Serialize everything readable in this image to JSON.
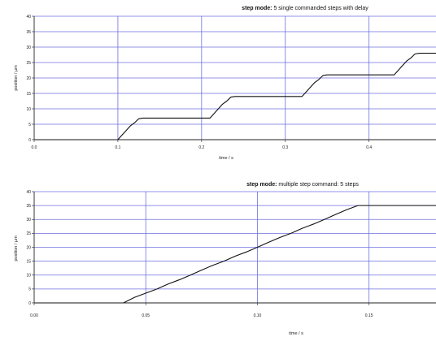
{
  "chart_data": [
    {
      "type": "line",
      "title_bold": "step mode:",
      "title_rest": " 5 single commanded steps with delay",
      "xlabel": "time / s",
      "ylabel": "position / µm",
      "xlim": [
        0.0,
        0.48
      ],
      "ylim": [
        0,
        40
      ],
      "xticks": [
        0.0,
        0.1,
        0.2,
        0.3,
        0.4
      ],
      "xtick_labels": [
        "0.0",
        "0.1",
        "0.2",
        "0.3",
        "0.4"
      ],
      "yticks": [
        0,
        5,
        10,
        15,
        20,
        25,
        30,
        35,
        40
      ],
      "ytick_labels": [
        "0",
        "5",
        "10",
        "15",
        "20",
        "25",
        "30",
        "35",
        "40"
      ],
      "grid": true,
      "x": [
        0.0,
        0.1,
        0.105,
        0.11,
        0.115,
        0.12,
        0.125,
        0.13,
        0.21,
        0.215,
        0.22,
        0.225,
        0.23,
        0.235,
        0.24,
        0.32,
        0.325,
        0.33,
        0.335,
        0.34,
        0.345,
        0.35,
        0.43,
        0.435,
        0.44,
        0.445,
        0.45,
        0.455,
        0.46,
        0.48
      ],
      "y": [
        0,
        0,
        1.5,
        3,
        4.5,
        5.5,
        6.8,
        7,
        7,
        8.5,
        10,
        11.5,
        12.5,
        13.8,
        14,
        14,
        15.5,
        17,
        18.5,
        19.5,
        20.8,
        21,
        21,
        22.5,
        24,
        25.5,
        26.5,
        27.8,
        28,
        28
      ]
    },
    {
      "type": "line",
      "title_bold": "step mode:",
      "title_rest": " multiple step command: 5 steps",
      "xlabel": "time / s",
      "ylabel": "position / µm",
      "xlim": [
        0.0,
        0.18
      ],
      "ylim": [
        0,
        40
      ],
      "xticks": [
        0.0,
        0.05,
        0.1,
        0.15
      ],
      "xtick_labels": [
        "0.00",
        "0.05",
        "0.10",
        "0.15"
      ],
      "yticks": [
        0,
        5,
        10,
        15,
        20,
        25,
        30,
        35,
        40
      ],
      "ytick_labels": [
        "0",
        "5",
        "10",
        "15",
        "20",
        "25",
        "30",
        "35",
        "40"
      ],
      "grid": true,
      "x": [
        0.0,
        0.04,
        0.045,
        0.05,
        0.055,
        0.06,
        0.065,
        0.07,
        0.075,
        0.08,
        0.085,
        0.09,
        0.095,
        0.1,
        0.105,
        0.11,
        0.115,
        0.12,
        0.125,
        0.13,
        0.135,
        0.14,
        0.145,
        0.18
      ],
      "y": [
        0,
        0,
        2,
        3.5,
        5,
        6.8,
        8.3,
        10,
        11.8,
        13.5,
        15,
        16.8,
        18.3,
        20,
        21.8,
        23.5,
        25,
        26.8,
        28.3,
        30,
        31.8,
        33.5,
        35,
        35
      ]
    }
  ]
}
